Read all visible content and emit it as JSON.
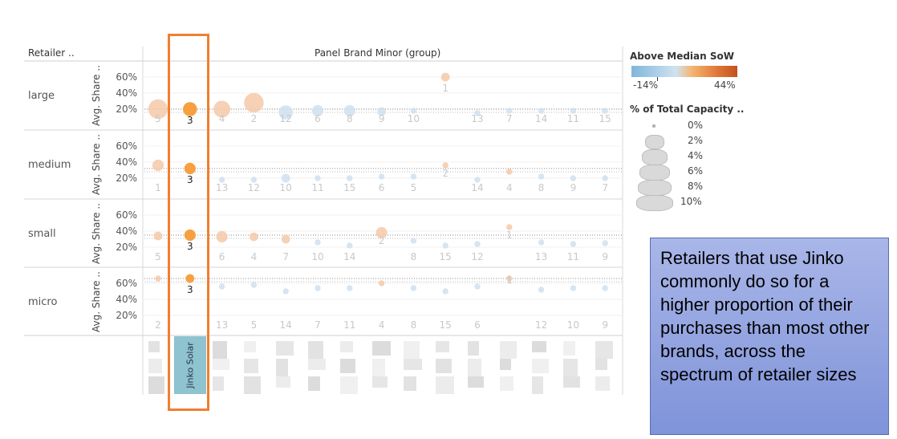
{
  "header": {
    "retailer_label": "Retailer ..",
    "panel_label": "Panel Brand Minor (group)",
    "y_axis_label": "Avg. Share .."
  },
  "legend": {
    "color_title": "Above Median SoW",
    "color_min": "-14%",
    "color_max": "44%",
    "color_low": "#7fb6dc",
    "color_mid": "#f6b26b",
    "color_high": "#c4501e",
    "size_title": "% of Total Capacity ..",
    "size_items": [
      "0%",
      "2%",
      "4%",
      "6%",
      "8%",
      "10%"
    ]
  },
  "highlight": {
    "brand": "Jinko Solar",
    "box_color": "#f07f30",
    "label_color": "#8ec3cf"
  },
  "callout": {
    "text": "Retailers that use Jinko commonly do so for a higher proportion of their purchases than most other brands, across the spectrum of retailer sizes"
  },
  "chart_data": {
    "type": "scatter",
    "y_ticks": [
      "60%",
      "40%",
      "20%"
    ],
    "rows": [
      {
        "label": "large",
        "points": [
          {
            "rank": "5",
            "y": 20,
            "size": 6,
            "tone": "faded-orange"
          },
          {
            "rank": "3",
            "y": 20,
            "size": 4,
            "tone": "orange",
            "highlight": true
          },
          {
            "rank": "4",
            "y": 20,
            "size": 5,
            "tone": "faded-orange"
          },
          {
            "rank": "2",
            "y": 28,
            "size": 6,
            "tone": "faded-orange"
          },
          {
            "rank": "12",
            "y": 16,
            "size": 4,
            "tone": "faded-blue"
          },
          {
            "rank": "6",
            "y": 18,
            "size": 3,
            "tone": "faded-blue"
          },
          {
            "rank": "8",
            "y": 18,
            "size": 3,
            "tone": "faded-blue"
          },
          {
            "rank": "9",
            "y": 17,
            "size": 2,
            "tone": "faded-blue"
          },
          {
            "rank": "10",
            "y": 18,
            "size": 1,
            "tone": "faded-blue"
          },
          {
            "rank": "1",
            "y": 60,
            "size": 2,
            "tone": "faded-orange"
          },
          {
            "rank": "13",
            "y": 15,
            "size": 1,
            "tone": "faded-blue"
          },
          {
            "rank": "7",
            "y": 18,
            "size": 1,
            "tone": "faded-blue"
          },
          {
            "rank": "14",
            "y": 18,
            "size": 1,
            "tone": "faded-blue"
          },
          {
            "rank": "11",
            "y": 18,
            "size": 1,
            "tone": "faded-blue"
          },
          {
            "rank": "15",
            "y": 18,
            "size": 1,
            "tone": "faded-blue"
          }
        ]
      },
      {
        "label": "medium",
        "points": [
          {
            "rank": "1",
            "y": 36,
            "size": 3,
            "tone": "faded-orange"
          },
          {
            "rank": "3",
            "y": 32,
            "size": 3,
            "tone": "orange",
            "highlight": true
          },
          {
            "rank": "13",
            "y": 18,
            "size": 1,
            "tone": "faded-blue"
          },
          {
            "rank": "12",
            "y": 18,
            "size": 1,
            "tone": "faded-blue"
          },
          {
            "rank": "10",
            "y": 20,
            "size": 2,
            "tone": "faded-blue"
          },
          {
            "rank": "11",
            "y": 20,
            "size": 1,
            "tone": "faded-blue"
          },
          {
            "rank": "15",
            "y": 20,
            "size": 1,
            "tone": "faded-blue"
          },
          {
            "rank": "6",
            "y": 22,
            "size": 1,
            "tone": "faded-blue"
          },
          {
            "rank": "5",
            "y": 22,
            "size": 1,
            "tone": "faded-blue"
          },
          {
            "rank": "2",
            "y": 36,
            "size": 1,
            "tone": "faded-orange"
          },
          {
            "rank": "14",
            "y": 18,
            "size": 1,
            "tone": "faded-blue"
          },
          {
            "rank": "4",
            "y": 28,
            "size": 1,
            "tone": "faded-orange"
          },
          {
            "rank": "8",
            "y": 22,
            "size": 1,
            "tone": "faded-blue"
          },
          {
            "rank": "9",
            "y": 20,
            "size": 1,
            "tone": "faded-blue"
          },
          {
            "rank": "7",
            "y": 20,
            "size": 1,
            "tone": "faded-blue"
          }
        ]
      },
      {
        "label": "small",
        "points": [
          {
            "rank": "5",
            "y": 34,
            "size": 2,
            "tone": "faded-orange"
          },
          {
            "rank": "3",
            "y": 35,
            "size": 3,
            "tone": "orange",
            "highlight": true
          },
          {
            "rank": "6",
            "y": 33,
            "size": 3,
            "tone": "faded-orange"
          },
          {
            "rank": "4",
            "y": 33,
            "size": 2,
            "tone": "faded-orange"
          },
          {
            "rank": "7",
            "y": 30,
            "size": 2,
            "tone": "faded-orange"
          },
          {
            "rank": "10",
            "y": 26,
            "size": 1,
            "tone": "faded-blue"
          },
          {
            "rank": "14",
            "y": 22,
            "size": 1,
            "tone": "faded-blue"
          },
          {
            "rank": "2",
            "y": 38,
            "size": 3,
            "tone": "faded-orange"
          },
          {
            "rank": "8",
            "y": 28,
            "size": 1,
            "tone": "faded-blue"
          },
          {
            "rank": "15",
            "y": 22,
            "size": 1,
            "tone": "faded-blue"
          },
          {
            "rank": "12",
            "y": 24,
            "size": 1,
            "tone": "faded-blue"
          },
          {
            "rank": "1",
            "y": 45,
            "size": 1,
            "tone": "faded-orange"
          },
          {
            "rank": "13",
            "y": 26,
            "size": 1,
            "tone": "faded-blue"
          },
          {
            "rank": "11",
            "y": 24,
            "size": 1,
            "tone": "faded-blue"
          },
          {
            "rank": "9",
            "y": 25,
            "size": 1,
            "tone": "faded-blue"
          }
        ]
      },
      {
        "label": "micro",
        "points": [
          {
            "rank": "2",
            "y": 66,
            "size": 1,
            "tone": "faded-orange"
          },
          {
            "rank": "3",
            "y": 66,
            "size": 2,
            "tone": "orange",
            "highlight": true
          },
          {
            "rank": "13",
            "y": 56,
            "size": 1,
            "tone": "faded-blue"
          },
          {
            "rank": "5",
            "y": 58,
            "size": 1,
            "tone": "faded-blue"
          },
          {
            "rank": "14",
            "y": 50,
            "size": 1,
            "tone": "faded-blue"
          },
          {
            "rank": "7",
            "y": 54,
            "size": 1,
            "tone": "faded-blue"
          },
          {
            "rank": "11",
            "y": 54,
            "size": 1,
            "tone": "faded-blue"
          },
          {
            "rank": "4",
            "y": 60,
            "size": 1,
            "tone": "faded-orange"
          },
          {
            "rank": "8",
            "y": 54,
            "size": 1,
            "tone": "faded-blue"
          },
          {
            "rank": "15",
            "y": 50,
            "size": 1,
            "tone": "faded-blue"
          },
          {
            "rank": "6",
            "y": 56,
            "size": 1,
            "tone": "faded-blue"
          },
          {
            "rank": "1",
            "y": 66,
            "size": 1,
            "tone": "faded-orange"
          },
          {
            "rank": "12",
            "y": 52,
            "size": 1,
            "tone": "faded-blue"
          },
          {
            "rank": "10",
            "y": 54,
            "size": 1,
            "tone": "faded-blue"
          },
          {
            "rank": "9",
            "y": 54,
            "size": 1,
            "tone": "faded-blue"
          }
        ]
      }
    ]
  }
}
